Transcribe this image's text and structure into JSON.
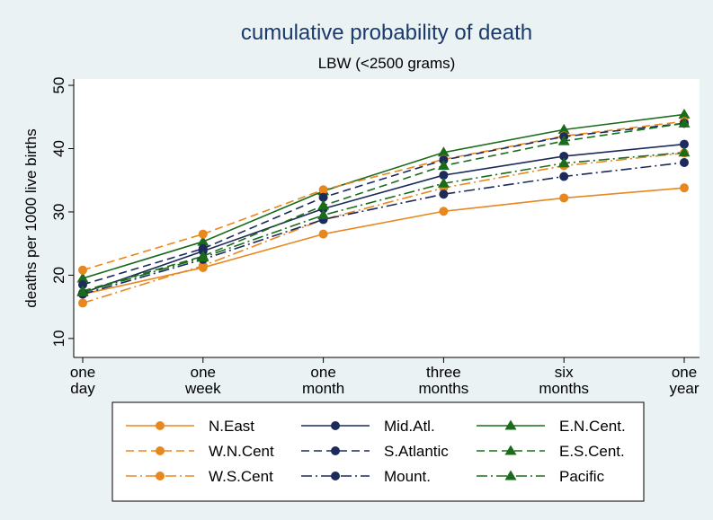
{
  "chart_data": {
    "type": "line",
    "title": "cumulative probability of death",
    "subtitle": "LBW (<2500 grams)",
    "y_label": "deaths per 1000 live births",
    "categories": [
      [
        "one",
        "day"
      ],
      [
        "one",
        "week"
      ],
      [
        "one",
        "month"
      ],
      [
        "three",
        "months"
      ],
      [
        "six",
        "months"
      ],
      [
        "one",
        "year"
      ]
    ],
    "ylim": [
      7,
      51
    ],
    "yticks": [
      10,
      20,
      30,
      40,
      50
    ],
    "grid": false,
    "legend_position": "bottom",
    "series": [
      {
        "name": "N.East",
        "color": "#e8871e",
        "dash": "solid",
        "marker": "circle",
        "values": [
          17.0,
          21.2,
          26.5,
          30.1,
          32.2,
          33.8
        ]
      },
      {
        "name": "Mid.Atl.",
        "color": "#1c2a5c",
        "dash": "solid",
        "marker": "circle",
        "values": [
          17.2,
          23.8,
          30.5,
          35.8,
          38.8,
          40.7
        ]
      },
      {
        "name": "E.N.Cent.",
        "color": "#1a6b1a",
        "dash": "solid",
        "marker": "triangle",
        "values": [
          19.5,
          25.3,
          33.3,
          39.4,
          43.0,
          45.4
        ]
      },
      {
        "name": "W.N.Cent",
        "color": "#e8871e",
        "dash": "dash",
        "marker": "circle",
        "values": [
          20.8,
          26.5,
          33.5,
          38.3,
          42.0,
          44.3
        ]
      },
      {
        "name": "S.Atlantic",
        "color": "#1c2a5c",
        "dash": "dash",
        "marker": "circle",
        "values": [
          18.5,
          24.2,
          32.3,
          38.2,
          41.9,
          44.0
        ]
      },
      {
        "name": "E.S.Cent.",
        "color": "#1a6b1a",
        "dash": "dash",
        "marker": "triangle",
        "values": [
          17.5,
          23.0,
          31.0,
          37.3,
          41.2,
          44.0
        ]
      },
      {
        "name": "W.S.Cent",
        "color": "#e8871e",
        "dash": "dashdot",
        "marker": "circle",
        "values": [
          15.6,
          21.5,
          28.8,
          33.8,
          37.3,
          39.3
        ]
      },
      {
        "name": "Mount.",
        "color": "#1c2a5c",
        "dash": "dashdot",
        "marker": "circle",
        "values": [
          17.0,
          22.5,
          28.8,
          32.8,
          35.6,
          37.8
        ]
      },
      {
        "name": "Pacific",
        "color": "#1a6b1a",
        "dash": "dashdot",
        "marker": "triangle",
        "values": [
          17.3,
          22.8,
          29.5,
          34.5,
          37.7,
          39.4
        ]
      }
    ]
  }
}
